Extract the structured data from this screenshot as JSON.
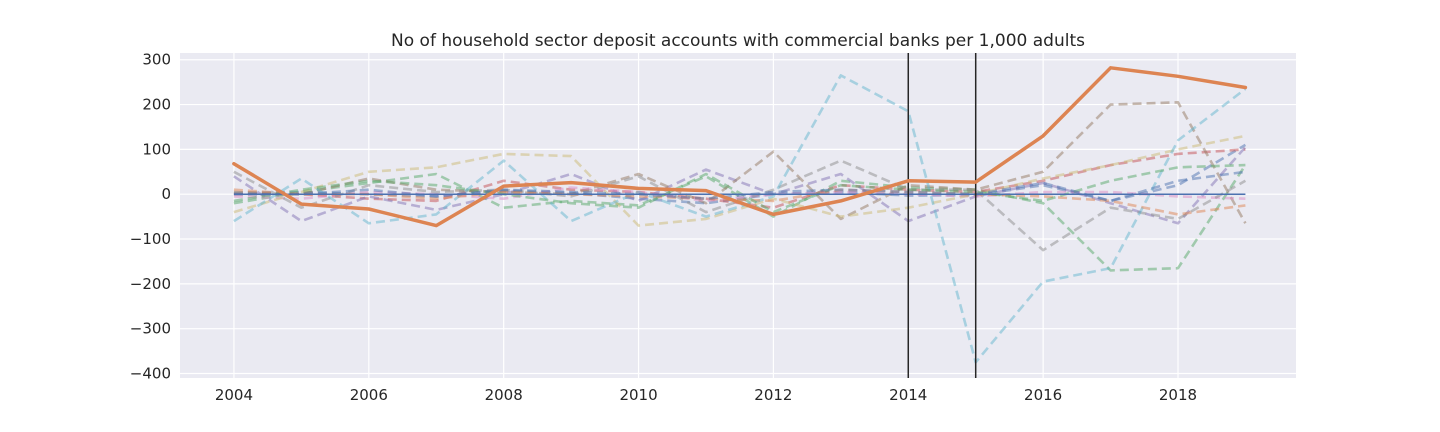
{
  "chart_data": {
    "type": "line",
    "title": "No of household sector deposit accounts with commercial banks per 1,000 adults",
    "xlabel": "",
    "ylabel": "",
    "x": [
      2004,
      2005,
      2006,
      2007,
      2008,
      2009,
      2010,
      2011,
      2012,
      2013,
      2014,
      2015,
      2016,
      2017,
      2018,
      2019
    ],
    "xlim": [
      2003.2,
      2019.75
    ],
    "ylim": [
      -410,
      315
    ],
    "xticks": [
      2004,
      2006,
      2008,
      2010,
      2012,
      2014,
      2016,
      2018
    ],
    "yticks": [
      300,
      200,
      100,
      0,
      -100,
      -200,
      -300,
      -400
    ],
    "xtick_labels": [
      "2004",
      "2006",
      "2008",
      "2010",
      "2012",
      "2014",
      "2016",
      "2018"
    ],
    "ytick_labels": [
      "300",
      "200",
      "100",
      "0",
      "−100",
      "−200",
      "−300",
      "−400"
    ],
    "grid": true,
    "legend": "none",
    "vlines": [
      2014,
      2015
    ],
    "baseline": 0,
    "treated_series": {
      "color": "#dd8452",
      "values": [
        68,
        -22,
        -33,
        -70,
        18,
        26,
        13,
        8,
        -45,
        -15,
        30,
        27,
        130,
        282,
        263,
        238
      ]
    },
    "series": [
      {
        "color": "#4c72b0",
        "values": [
          3,
          5,
          0,
          -5,
          8,
          3,
          -10,
          -20,
          0,
          5,
          -3,
          -2,
          20,
          -15,
          20,
          110
        ]
      },
      {
        "color": "#55a868",
        "values": [
          -20,
          5,
          25,
          45,
          -30,
          -15,
          -25,
          40,
          -50,
          30,
          15,
          10,
          -20,
          -170,
          -165,
          65
        ]
      },
      {
        "color": "#c44e52",
        "values": [
          0,
          0,
          -10,
          -15,
          30,
          10,
          5,
          -10,
          -30,
          20,
          10,
          5,
          30,
          65,
          90,
          100
        ]
      },
      {
        "color": "#8172b3",
        "values": [
          40,
          -60,
          -5,
          -35,
          0,
          45,
          -15,
          55,
          0,
          45,
          -60,
          -5,
          25,
          -20,
          -65,
          105
        ]
      },
      {
        "color": "#937860",
        "values": [
          5,
          0,
          35,
          10,
          5,
          0,
          45,
          -20,
          95,
          -55,
          20,
          10,
          50,
          200,
          205,
          -65
        ]
      },
      {
        "color": "#da8bc3",
        "values": [
          -5,
          -10,
          5,
          0,
          -10,
          15,
          5,
          -15,
          0,
          5,
          0,
          -5,
          5,
          5,
          -5,
          -10
        ]
      },
      {
        "color": "#8c8c8c",
        "values": [
          50,
          -30,
          20,
          5,
          10,
          -5,
          40,
          -40,
          10,
          75,
          10,
          10,
          -125,
          -30,
          -55,
          30
        ]
      },
      {
        "color": "#ccb974",
        "values": [
          -40,
          5,
          50,
          60,
          90,
          85,
          -70,
          -55,
          -10,
          -50,
          -30,
          0,
          35,
          65,
          100,
          130
        ]
      },
      {
        "color": "#64b5cd",
        "values": [
          -60,
          35,
          -65,
          -45,
          75,
          -60,
          5,
          -50,
          -5,
          265,
          185,
          -375,
          -195,
          -165,
          120,
          235
        ]
      },
      {
        "color": "#dd8452",
        "values": [
          10,
          0,
          0,
          -10,
          5,
          0,
          -5,
          -10,
          -15,
          10,
          5,
          0,
          -5,
          -15,
          -45,
          -25
        ]
      },
      {
        "color": "#55a868",
        "values": [
          -15,
          10,
          30,
          20,
          0,
          -20,
          -30,
          45,
          -40,
          20,
          10,
          5,
          -15,
          30,
          60,
          65
        ]
      },
      {
        "color": "#4c72b0",
        "values": [
          0,
          0,
          10,
          -5,
          10,
          5,
          0,
          -10,
          5,
          10,
          5,
          0,
          25,
          -15,
          30,
          50
        ]
      }
    ]
  }
}
